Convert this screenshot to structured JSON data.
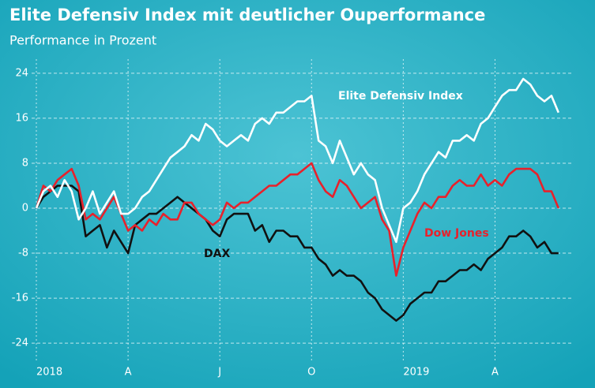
{
  "chart_data": {
    "type": "line",
    "title": "Elite Defensiv Index mit deutlicher Ouperformance",
    "subtitle": "Performance in Prozent",
    "categories": [
      "2018",
      null,
      null,
      null,
      null,
      null,
      null,
      null,
      null,
      null,
      null,
      null,
      null,
      "A",
      null,
      null,
      null,
      null,
      null,
      null,
      null,
      null,
      null,
      null,
      null,
      null,
      "J",
      null,
      null,
      null,
      null,
      null,
      null,
      null,
      null,
      null,
      null,
      null,
      null,
      "O",
      null,
      null,
      null,
      null,
      null,
      null,
      null,
      null,
      null,
      null,
      null,
      null,
      "2019",
      null,
      null,
      null,
      null,
      null,
      null,
      null,
      null,
      null,
      null,
      null,
      null,
      "A",
      null,
      null,
      null,
      null,
      null,
      null,
      null,
      null,
      null
    ],
    "series": [
      {
        "name": "Elite Defensiv Index",
        "color": "#ffffff",
        "values": [
          0,
          3,
          4,
          2,
          5,
          3,
          -2,
          0,
          3,
          -1,
          1,
          3,
          -1,
          -1,
          0,
          2,
          3,
          5,
          7,
          9,
          10,
          11,
          13,
          12,
          15,
          14,
          12,
          11,
          12,
          13,
          12,
          15,
          16,
          15,
          17,
          17,
          18,
          19,
          19,
          20,
          12,
          11,
          8,
          12,
          9,
          6,
          8,
          6,
          5,
          0,
          -3,
          -6,
          0,
          1,
          3,
          6,
          8,
          10,
          9,
          12,
          12,
          13,
          12,
          15,
          16,
          18,
          20,
          21,
          21,
          23,
          22,
          20,
          19,
          20,
          17
        ]
      },
      {
        "name": "Dow Jones",
        "color": "#e8212b",
        "values": [
          0,
          4,
          3,
          5,
          6,
          7,
          4,
          -2,
          -1,
          -2,
          0,
          2,
          -1,
          -4,
          -3,
          -4,
          -2,
          -3,
          -1,
          -2,
          -2,
          1,
          1,
          -1,
          -2,
          -3,
          -2,
          1,
          0,
          1,
          1,
          2,
          3,
          4,
          4,
          5,
          6,
          6,
          7,
          8,
          5,
          3,
          2,
          5,
          4,
          2,
          0,
          1,
          2,
          -2,
          -4,
          -12,
          -7,
          -4,
          -1,
          1,
          0,
          2,
          2,
          4,
          5,
          4,
          4,
          6,
          4,
          5,
          4,
          6,
          7,
          7,
          7,
          6,
          3,
          3,
          0
        ]
      },
      {
        "name": "DAX",
        "color": "#111111",
        "values": [
          0,
          2,
          3,
          4,
          4,
          4,
          3,
          -5,
          -4,
          -3,
          -7,
          -4,
          -6,
          -8,
          -3,
          -2,
          -1,
          -1,
          0,
          1,
          2,
          1,
          0,
          -1,
          -2,
          -4,
          -5,
          -2,
          -1,
          -1,
          -1,
          -4,
          -3,
          -6,
          -4,
          -4,
          -5,
          -5,
          -7,
          -7,
          -9,
          -10,
          -12,
          -11,
          -12,
          -12,
          -13,
          -15,
          -16,
          -18,
          -19,
          -20,
          -19,
          -17,
          -16,
          -15,
          -15,
          -13,
          -13,
          -12,
          -11,
          -11,
          -10,
          -11,
          -9,
          -8,
          -7,
          -5,
          -5,
          -4,
          -5,
          -7,
          -6,
          -8,
          -8
        ]
      }
    ],
    "ylim": [
      -26.5,
      26.5
    ],
    "yticks": [
      -24,
      -16,
      -8,
      0,
      8,
      16,
      24
    ],
    "grid": true
  }
}
